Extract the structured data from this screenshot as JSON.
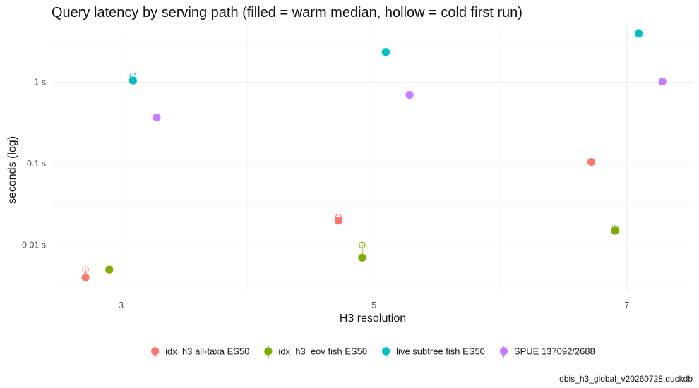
{
  "chart_data": {
    "type": "scatter",
    "title": "Query latency by serving path (filled = warm median, hollow = cold first run)",
    "xlabel": "H3 resolution",
    "ylabel": "seconds (log)",
    "caption": "obis_h3_global_v20260728.duckdb",
    "x_ticks": [
      3,
      5,
      7
    ],
    "x_tick_labels": [
      "3",
      "5",
      "7"
    ],
    "xlim": [
      2.45,
      7.52
    ],
    "y_scale": "log10",
    "ylim": [
      0.0027,
      5.0
    ],
    "y_ticks": [
      0.01,
      0.1,
      1
    ],
    "y_tick_labels": [
      "0.01 s",
      "0.1 s",
      "1 s"
    ],
    "grid": true,
    "legend_position": "bottom",
    "point_encoding": {
      "filled": "warm median",
      "hollow": "cold first run"
    },
    "series": [
      {
        "name": "idx_h3 all-taxa ES50",
        "color": "#F8766D",
        "points": [
          {
            "x": 3,
            "warm": 0.004,
            "cold": 0.005
          },
          {
            "x": 5,
            "warm": 0.02,
            "cold": 0.022
          },
          {
            "x": 7,
            "warm": 0.105,
            "cold": 0.105
          }
        ]
      },
      {
        "name": "idx_h3_eov fish ES50",
        "color": "#7CAE00",
        "points": [
          {
            "x": 3,
            "warm": 0.005,
            "cold": 0.005
          },
          {
            "x": 5,
            "warm": 0.007,
            "cold": 0.01
          },
          {
            "x": 7,
            "warm": 0.015,
            "cold": 0.016
          }
        ]
      },
      {
        "name": "live subtree fish ES50",
        "color": "#00BFC4",
        "points": [
          {
            "x": 3,
            "warm": 1.05,
            "cold": 1.2
          },
          {
            "x": 5,
            "warm": 2.35,
            "cold": 2.4
          },
          {
            "x": 7,
            "warm": 3.95,
            "cold": 4.1
          }
        ]
      },
      {
        "name": "SPUE 137092/2688",
        "color": "#C77CFF",
        "points": [
          {
            "x": 3,
            "warm": 0.37,
            "cold": 0.37
          },
          {
            "x": 5,
            "warm": 0.7,
            "cold": 0.7
          },
          {
            "x": 7,
            "warm": 1.02,
            "cold": 1.02
          }
        ]
      }
    ]
  }
}
